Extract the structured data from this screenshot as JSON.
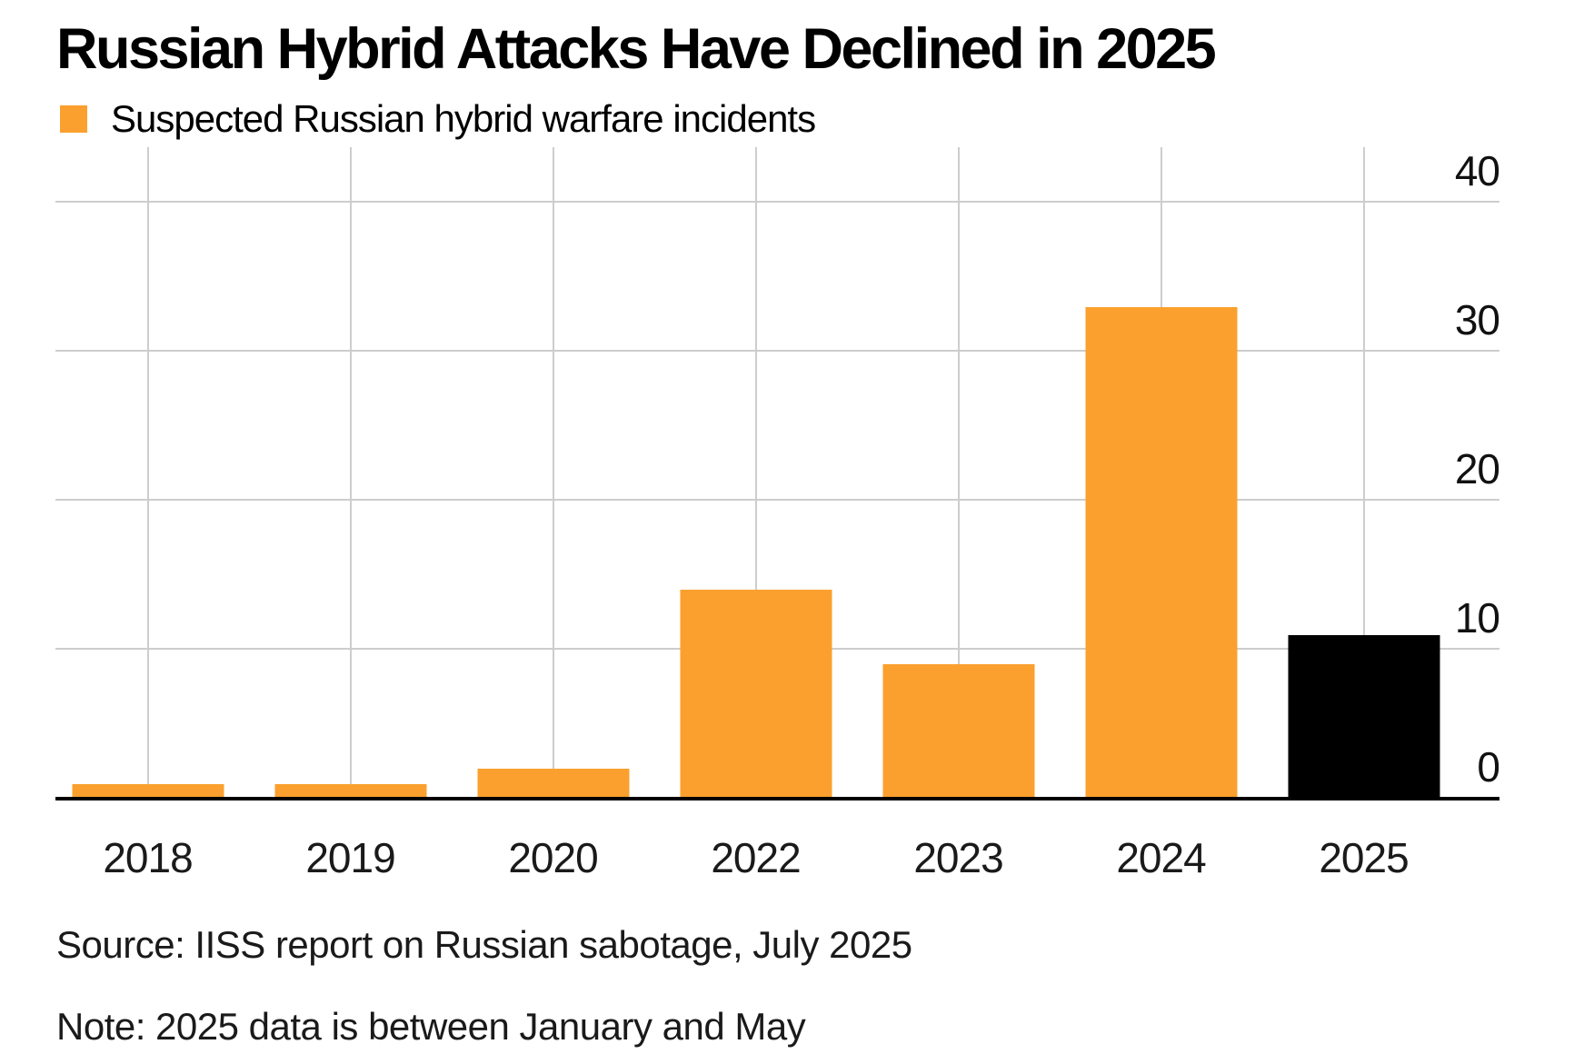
{
  "chart_data": {
    "type": "bar",
    "title": "Russian Hybrid Attacks Have Declined in 2025",
    "legend_label": "Suspected Russian hybrid warfare incidents",
    "categories": [
      "2018",
      "2019",
      "2020",
      "2022",
      "2023",
      "2024",
      "2025"
    ],
    "values": [
      1,
      1,
      2,
      14,
      9,
      33,
      11
    ],
    "series": [
      {
        "name": "Suspected Russian hybrid warfare incidents",
        "values": [
          1,
          1,
          2,
          14,
          9,
          33,
          11
        ]
      }
    ],
    "bar_colors": [
      "#FBA02E",
      "#FBA02E",
      "#FBA02E",
      "#FBA02E",
      "#FBA02E",
      "#FBA02E",
      "#000000"
    ],
    "xlabel": "",
    "ylabel": "",
    "yticks": [
      0,
      10,
      20,
      30,
      40
    ],
    "ylim": [
      0,
      43.7
    ],
    "grid": true,
    "ytick_side": "right",
    "legend_position": "top-left",
    "source": "Source: IISS report on Russian sabotage, July 2025",
    "note": "Note: 2025 data is between January and May",
    "colors": {
      "accent_orange": "#FBA02E",
      "highlight_black": "#000000",
      "gridline": "#CDCDCD",
      "axis_line": "#000000",
      "text": "#111111",
      "background": "#FFFFFF"
    }
  }
}
